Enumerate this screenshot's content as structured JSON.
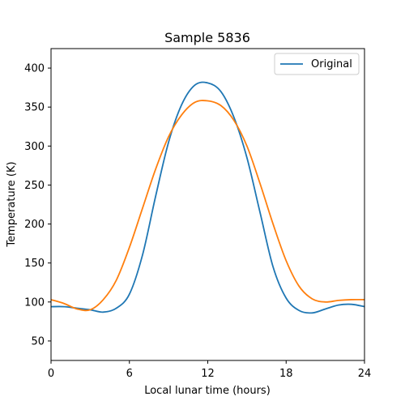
{
  "chart_data": {
    "type": "line",
    "title": "Sample 5836",
    "xlabel": "Local lunar time (hours)",
    "ylabel": "Temperature (K)",
    "xlim": [
      0,
      24
    ],
    "ylim": [
      25,
      425
    ],
    "xticks": [
      0,
      6,
      12,
      18,
      24
    ],
    "yticks": [
      50,
      100,
      150,
      200,
      250,
      300,
      350,
      400
    ],
    "grid": false,
    "legend_position": "top-right",
    "series": [
      {
        "name": "Original",
        "color": "#1f77b4",
        "x": [
          0,
          1,
          2,
          3,
          4,
          5,
          6,
          7,
          8,
          9,
          10,
          11,
          12,
          13,
          14,
          15,
          16,
          17,
          18,
          19,
          20,
          21,
          22,
          23,
          24
        ],
        "y": [
          94,
          94,
          92,
          90,
          87,
          92,
          110,
          160,
          235,
          305,
          353,
          378,
          381,
          370,
          337,
          285,
          215,
          145,
          105,
          89,
          86,
          91,
          96,
          97,
          94
        ]
      },
      {
        "name": "",
        "color": "#ff7f0e",
        "x": [
          0,
          1,
          2,
          3,
          4,
          5,
          6,
          7,
          8,
          9,
          10,
          11,
          12,
          13,
          14,
          15,
          16,
          17,
          18,
          19,
          20,
          21,
          22,
          23,
          24
        ],
        "y": [
          103,
          98,
          91,
          90,
          103,
          128,
          170,
          220,
          270,
          312,
          340,
          356,
          358,
          352,
          333,
          300,
          252,
          200,
          153,
          120,
          104,
          100,
          102,
          103,
          103
        ]
      }
    ]
  }
}
